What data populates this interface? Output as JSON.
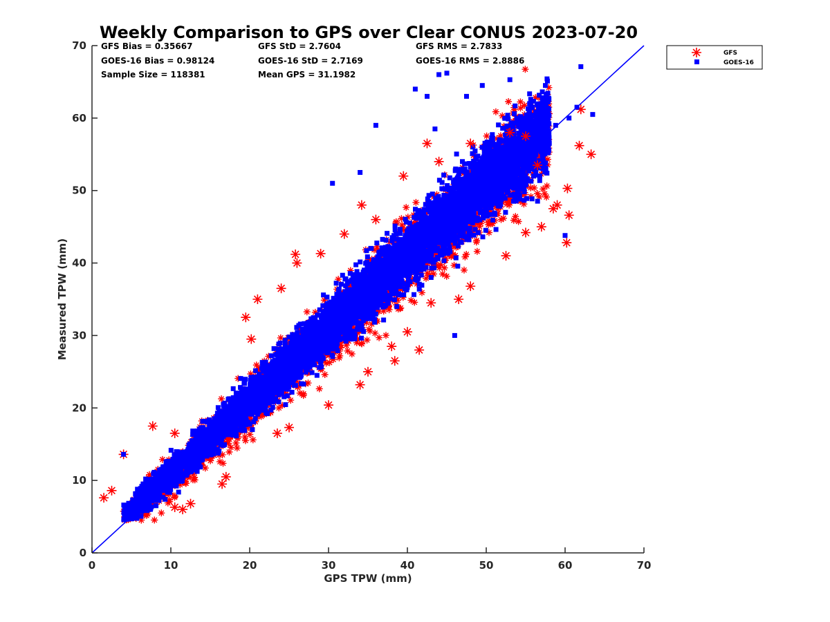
{
  "chart_data": {
    "type": "scatter",
    "title": "Weekly Comparison to GPS over Clear CONUS 2023-07-20",
    "xlabel": "GPS TPW (mm)",
    "ylabel": "Measured TPW (mm)",
    "xlim": [
      0,
      70
    ],
    "ylim": [
      0,
      70
    ],
    "xticks": [
      "0",
      "10",
      "20",
      "30",
      "40",
      "50",
      "60",
      "70"
    ],
    "yticks": [
      "0",
      "10",
      "20",
      "30",
      "40",
      "50",
      "60",
      "70"
    ],
    "reference_line": "y = x",
    "legend_position": "outside-top-right",
    "stats": [
      [
        "GFS Bias = 0.35667",
        "GFS StD = 2.7604",
        "GFS RMS = 2.7833"
      ],
      [
        "GOES-16 Bias = 0.98124",
        "GOES-16 StD = 2.7169",
        "GOES-16 RMS = 2.8886"
      ],
      [
        "Sample Size = 118381",
        "Mean GPS = 31.1982"
      ]
    ],
    "series": [
      {
        "name": "GFS",
        "marker": "asterisk",
        "color": "#ff0000",
        "points": [
          [
            1.5,
            7.6
          ],
          [
            2.5,
            8.6
          ],
          [
            4,
            13.6
          ],
          [
            7.7,
            17.5
          ],
          [
            10.5,
            16.5
          ],
          [
            25.8,
            41.2
          ],
          [
            29,
            41.3
          ],
          [
            34.2,
            48
          ],
          [
            44,
            54
          ],
          [
            55,
            57.5
          ],
          [
            60.2,
            42.8
          ],
          [
            60.5,
            46.6
          ],
          [
            62,
            61.2
          ],
          [
            63.3,
            55
          ],
          [
            61.8,
            56.2
          ],
          [
            60.3,
            50.3
          ],
          [
            59,
            48
          ],
          [
            58.5,
            47.5
          ],
          [
            57,
            45
          ],
          [
            55,
            44.2
          ],
          [
            52.5,
            41
          ],
          [
            48,
            36.8
          ],
          [
            46.5,
            35
          ],
          [
            43,
            34.5
          ],
          [
            40,
            30.5
          ],
          [
            38,
            28.5
          ],
          [
            35,
            25
          ],
          [
            34,
            23.2
          ],
          [
            30,
            20.4
          ],
          [
            25,
            17.3
          ],
          [
            23.5,
            16.5
          ],
          [
            17,
            10.5
          ],
          [
            12.5,
            6.8
          ],
          [
            10.5,
            6.3
          ],
          [
            11.5,
            6
          ],
          [
            16.5,
            9.5
          ],
          [
            20.2,
            29.5
          ],
          [
            19.5,
            32.5
          ],
          [
            21,
            35
          ],
          [
            24,
            36.5
          ],
          [
            26,
            40
          ],
          [
            32,
            44
          ],
          [
            36,
            46
          ],
          [
            39.5,
            52
          ],
          [
            42.5,
            56.5
          ],
          [
            48,
            56.5
          ],
          [
            53,
            58
          ],
          [
            56.5,
            53.5
          ],
          [
            38.4,
            26.5
          ],
          [
            41.5,
            28
          ]
        ]
      },
      {
        "name": "GOES-16",
        "marker": "square",
        "color": "#0000ff",
        "points": [
          [
            62,
            67.1
          ],
          [
            61.5,
            61.5
          ],
          [
            63.5,
            60.5
          ],
          [
            57.5,
            64.5
          ],
          [
            53,
            65.3
          ],
          [
            49.5,
            64.5
          ],
          [
            45,
            66.2
          ],
          [
            44,
            66
          ],
          [
            41,
            64
          ],
          [
            36,
            59
          ],
          [
            30.5,
            51
          ],
          [
            34,
            52.5
          ],
          [
            4,
            13.6
          ],
          [
            46,
            30
          ],
          [
            60,
            43.8
          ],
          [
            60.5,
            60
          ],
          [
            55.5,
            62
          ],
          [
            47.5,
            63
          ],
          [
            43.5,
            58.5
          ],
          [
            42.5,
            63
          ],
          [
            57.8,
            61
          ],
          [
            58.8,
            59
          ]
        ]
      }
    ]
  }
}
